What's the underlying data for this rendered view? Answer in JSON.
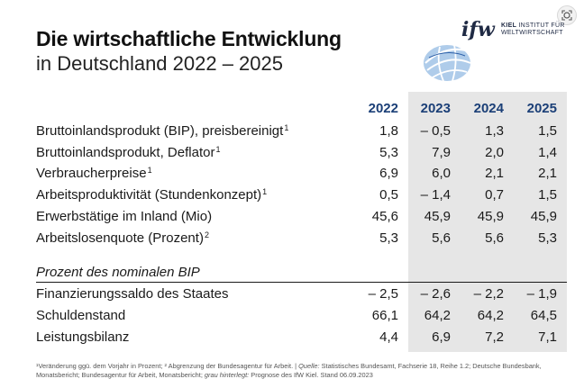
{
  "title_bold": "Die wirtschaftliche Entwicklung",
  "title_light": "in Deutschland 2022 – 2025",
  "logo": {
    "mark": "ifw",
    "line1": "KIEL",
    "line1_rest": " INSTITUT FÜR",
    "line2": "WELTWIRTSCHAFT"
  },
  "years": [
    "2022",
    "2023",
    "2024",
    "2025"
  ],
  "rows": [
    {
      "label": "Bruttoinlandsprodukt (BIP), preisbereinigt",
      "sup": "1",
      "values": [
        "1,8",
        "– 0,5",
        "1,3",
        "1,5"
      ]
    },
    {
      "label": "Bruttoinlandsprodukt, Deflator",
      "sup": "1",
      "values": [
        "5,3",
        "7,9",
        "2,0",
        "1,4"
      ]
    },
    {
      "label": "Verbraucherpreise",
      "sup": "1",
      "values": [
        "6,9",
        "6,0",
        "2,1",
        "2,1"
      ]
    },
    {
      "label": "Arbeitsproduktivität (Stundenkonzept)",
      "sup": "1",
      "values": [
        "0,5",
        "– 1,4",
        "0,7",
        "1,5"
      ]
    },
    {
      "label": "Erwerbstätige im Inland (Mio)",
      "sup": "",
      "values": [
        "45,6",
        "45,9",
        "45,9",
        "45,9"
      ]
    },
    {
      "label": "Arbeitslosenquote (Prozent)",
      "sup": "2",
      "values": [
        "5,3",
        "5,6",
        "5,6",
        "5,3"
      ]
    }
  ],
  "section_label": "Prozent des nominalen BIP",
  "rows2": [
    {
      "label": "Finanzierungssaldo des Staates",
      "values": [
        "– 2,5",
        "– 2,6",
        "– 2,2",
        "– 1,9"
      ]
    },
    {
      "label": "Schuldenstand",
      "values": [
        "66,1",
        "64,2",
        "64,2",
        "64,5"
      ]
    },
    {
      "label": "Leistungsbilanz",
      "values": [
        "4,4",
        "6,9",
        "7,2",
        "7,1"
      ]
    }
  ],
  "footnote": {
    "f1": "¹Veränderung ggü. dem Vorjahr in Prozent;  ² Abgrenzung der Bundesagentur für Arbeit. | ",
    "quelle": "Quelle:",
    "f2": " Statistisches Bundesamt, Fachserie 18, Reihe 1.2; Deutsche Bundesbank, Monatsbericht; Bundesagentur für Arbeit, Monatsbericht; ",
    "grau": "grau hinterlegt:",
    "f3": " Prognose des IfW Kiel. Stand 06.09.2023"
  }
}
